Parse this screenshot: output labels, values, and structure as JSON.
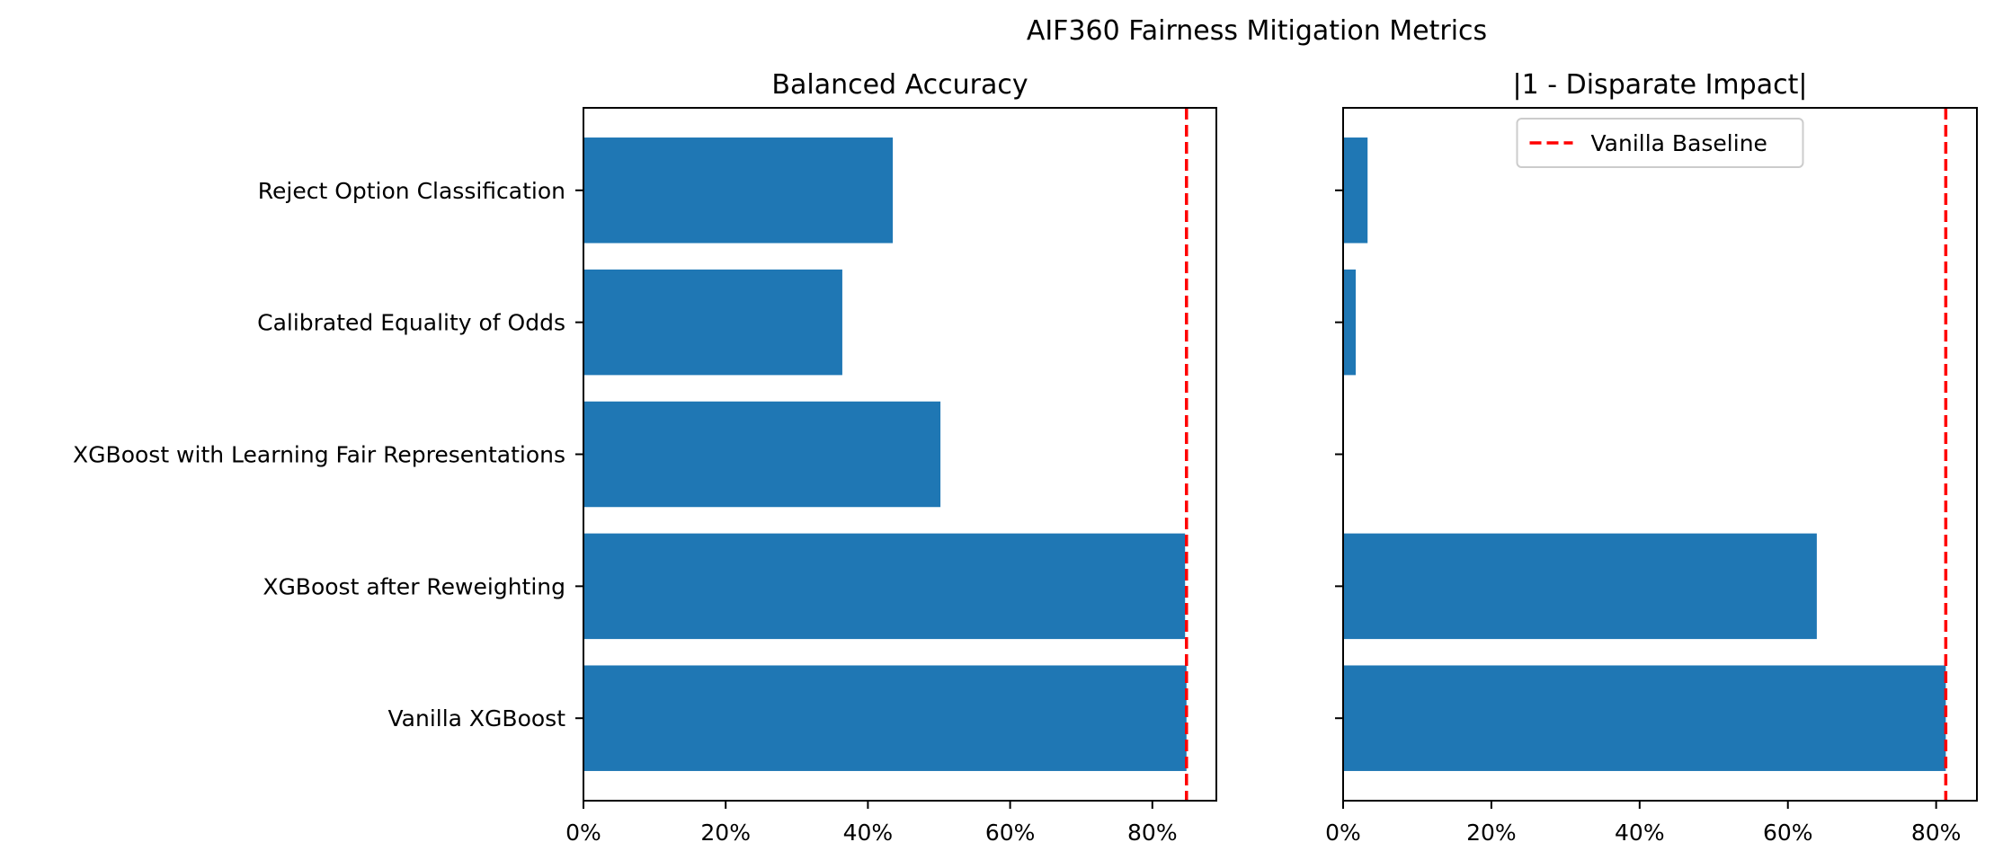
{
  "title": "AIF360 Fairness Mitigation Metrics",
  "colors": {
    "bar": "#1f77b4",
    "baseline": "#ff0000"
  },
  "chart_data": [
    {
      "type": "bar",
      "orientation": "horizontal",
      "title": "Balanced Accuracy",
      "categories": [
        "Vanilla XGBoost",
        "XGBoost after Reweighting",
        "XGBoost with Learning Fair Representations",
        "Calibrated Equality of Odds",
        "Reject Option Classification"
      ],
      "values": [
        0.848,
        0.846,
        0.502,
        0.364,
        0.435
      ],
      "xlim": [
        0,
        0.89
      ],
      "xticks": [
        0,
        0.2,
        0.4,
        0.6,
        0.8
      ],
      "xtick_labels": [
        "0%",
        "20%",
        "40%",
        "60%",
        "80%"
      ],
      "baseline": 0.848,
      "grid": false
    },
    {
      "type": "bar",
      "orientation": "horizontal",
      "title": "|1 - Disparate Impact|",
      "categories": [
        "Vanilla XGBoost",
        "XGBoost after Reweighting",
        "XGBoost with Learning Fair Representations",
        "Calibrated Equality of Odds",
        "Reject Option Classification"
      ],
      "values": [
        0.813,
        0.639,
        0.0,
        0.017,
        0.033
      ],
      "xlim": [
        0,
        0.855
      ],
      "xticks": [
        0,
        0.2,
        0.4,
        0.6,
        0.8
      ],
      "xtick_labels": [
        "0%",
        "20%",
        "40%",
        "60%",
        "80%"
      ],
      "baseline": 0.813,
      "grid": false,
      "legend": {
        "label": "Vanilla Baseline",
        "position": "top-center"
      }
    }
  ]
}
